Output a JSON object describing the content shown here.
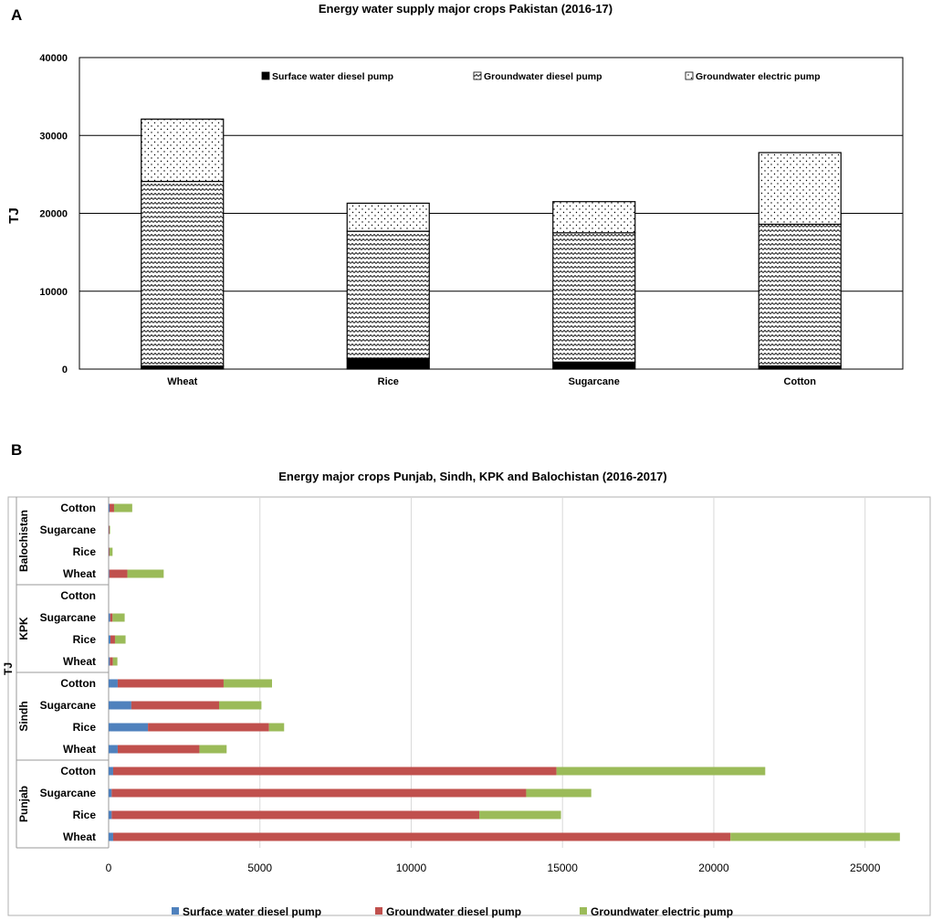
{
  "chart_data": [
    {
      "panel_label": "A",
      "type": "bar",
      "stacked": true,
      "title": "Energy water supply major crops Pakistan (2016-17)",
      "xlabel": "",
      "ylabel": "TJ",
      "ylim": [
        0,
        40000
      ],
      "yticks": [
        0,
        10000,
        20000,
        30000,
        40000
      ],
      "grid": true,
      "legend_position": "top",
      "categories": [
        "Wheat",
        "Rice",
        "Sugarcane",
        "Cotton"
      ],
      "series": [
        {
          "name": "Surface water diesel pump",
          "pattern": "solid",
          "values": [
            400,
            1400,
            900,
            400
          ]
        },
        {
          "name": "Groundwater diesel pump",
          "pattern": "wave",
          "values": [
            23700,
            16300,
            16600,
            18200
          ]
        },
        {
          "name": "Groundwater electric pump",
          "pattern": "dots",
          "values": [
            8000,
            3600,
            4000,
            9200
          ]
        }
      ]
    },
    {
      "panel_label": "B",
      "type": "bar",
      "orientation": "horizontal",
      "stacked": true,
      "title": "Energy major crops Punjab, Sindh, KPK and Balochistan (2016-2017)",
      "xlabel": "",
      "ylabel": "TJ",
      "xlim": [
        0,
        27000
      ],
      "xticks": [
        0,
        5000,
        10000,
        15000,
        20000,
        25000
      ],
      "grid": true,
      "legend_position": "bottom",
      "groups": [
        {
          "name": "Balochistan",
          "categories": [
            "Cotton",
            "Sugarcane",
            "Rice",
            "Wheat"
          ]
        },
        {
          "name": "KPK",
          "categories": [
            "Cotton",
            "Sugarcane",
            "Rice",
            "Wheat"
          ]
        },
        {
          "name": "Sindh",
          "categories": [
            "Cotton",
            "Sugarcane",
            "Rice",
            "Wheat"
          ]
        },
        {
          "name": "Punjab",
          "categories": [
            "Cotton",
            "Sugarcane",
            "Rice",
            "Wheat"
          ]
        }
      ],
      "series": [
        {
          "name": "Surface water diesel pump",
          "color": "#4F81BD",
          "values": [
            30,
            10,
            10,
            20,
            0,
            50,
            60,
            40,
            300,
            750,
            1300,
            300,
            150,
            100,
            100,
            150
          ]
        },
        {
          "name": "Groundwater diesel pump",
          "color": "#C0504D",
          "values": [
            150,
            20,
            20,
            600,
            0,
            80,
            150,
            100,
            3500,
            2900,
            4000,
            2700,
            14650,
            13700,
            12150,
            20400
          ]
        },
        {
          "name": "Groundwater electric pump",
          "color": "#9BBB59",
          "values": [
            600,
            20,
            100,
            1200,
            0,
            400,
            350,
            150,
            1600,
            1400,
            500,
            900,
            6900,
            2150,
            2700,
            5600
          ]
        }
      ]
    }
  ]
}
